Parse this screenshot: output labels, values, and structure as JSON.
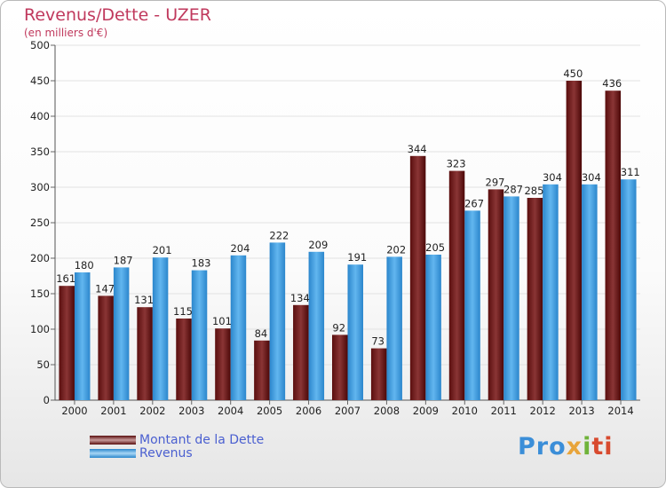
{
  "chart_data": {
    "type": "bar",
    "title": "Revenus/Dette - UZER",
    "subtitle": "(en milliers d'€)",
    "categories": [
      "2000",
      "2001",
      "2002",
      "2003",
      "2004",
      "2005",
      "2006",
      "2007",
      "2008",
      "2009",
      "2010",
      "2011",
      "2012",
      "2013",
      "2014"
    ],
    "series": [
      {
        "name": "Montant de la Dette",
        "color": "#7a1c1c",
        "values": [
          161,
          147,
          131,
          115,
          101,
          84,
          134,
          92,
          73,
          344,
          323,
          297,
          285,
          450,
          436
        ]
      },
      {
        "name": "Revenus",
        "color": "#4aa6e6",
        "values": [
          180,
          187,
          201,
          183,
          204,
          222,
          209,
          191,
          202,
          205,
          267,
          287,
          304,
          304,
          311
        ]
      }
    ],
    "yticks": [
      0,
      50,
      100,
      150,
      200,
      250,
      300,
      350,
      400,
      450,
      500
    ],
    "ylim": [
      0,
      500
    ],
    "grid": true,
    "legend_position": "bottom-left"
  },
  "logo": {
    "text": "Proxiti",
    "parts": [
      "Pro",
      "x",
      "i",
      "ti"
    ]
  }
}
